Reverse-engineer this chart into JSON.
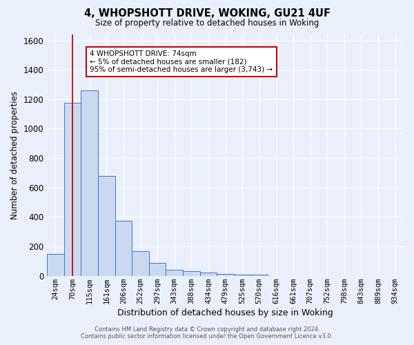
{
  "title1": "4, WHOPSHOTT DRIVE, WOKING, GU21 4UF",
  "title2": "Size of property relative to detached houses in Woking",
  "xlabel": "Distribution of detached houses by size in Woking",
  "ylabel": "Number of detached properties",
  "footer1": "Contains HM Land Registry data © Crown copyright and database right 2024.",
  "footer2": "Contains public sector information licensed under the Open Government Licence v3.0.",
  "categories": [
    "24sqm",
    "70sqm",
    "115sqm",
    "161sqm",
    "206sqm",
    "252sqm",
    "297sqm",
    "343sqm",
    "388sqm",
    "434sqm",
    "479sqm",
    "525sqm",
    "570sqm",
    "616sqm",
    "661sqm",
    "707sqm",
    "752sqm",
    "798sqm",
    "843sqm",
    "889sqm",
    "934sqm"
  ],
  "values": [
    150,
    1175,
    1260,
    680,
    375,
    170,
    90,
    40,
    30,
    22,
    15,
    10,
    10,
    0,
    0,
    0,
    0,
    0,
    0,
    0,
    0
  ],
  "bar_color": "#c9d9f0",
  "bar_edge_color": "#4472c4",
  "background_color": "#eaf0fb",
  "grid_color": "#ffffff",
  "vline_x": 1,
  "vline_color": "#cc0000",
  "annotation_text": "4 WHOPSHOTT DRIVE: 74sqm\n← 5% of detached houses are smaller (182)\n95% of semi-detached houses are larger (3,743) →",
  "annotation_box_color": "#ffffff",
  "annotation_box_edge": "#cc0000",
  "ylim": [
    0,
    1640
  ],
  "yticks": [
    0,
    200,
    400,
    600,
    800,
    1000,
    1200,
    1400,
    1600
  ]
}
